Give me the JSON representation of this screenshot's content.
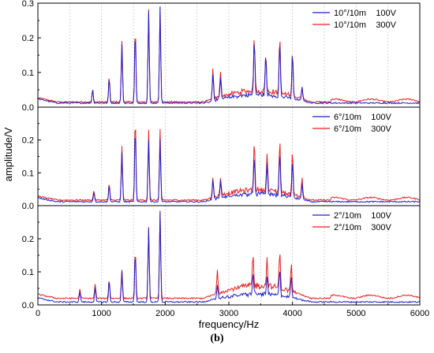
{
  "caption": "(b)",
  "chart_data": {
    "type": "line",
    "xlabel": "frequency/Hz",
    "ylabel": "amplitude/V",
    "xlim": [
      0,
      6000
    ],
    "x_ticks": [
      0,
      1000,
      2000,
      3000,
      4000,
      5000,
      6000
    ],
    "x_tick_labels": [
      "0",
      "1000",
      "2000",
      "3000",
      "4000",
      "5000",
      "6000"
    ],
    "x_minor_step": 500,
    "grid": "dotted vertical gridlines every 500 Hz",
    "legend_position": "top-right",
    "colors": {
      "100V": "#1f1fcf",
      "300V": "#ee1c1c"
    },
    "panels": [
      {
        "id": "top",
        "legend": [
          "10°/10m    100V",
          "10°/10m    300V"
        ],
        "ylim": [
          0,
          0.3
        ],
        "y_ticks": [
          0,
          0.1,
          0.2,
          0.3
        ],
        "y_tick_labels": [
          "0.0",
          "0.1",
          "0.2",
          "0.3"
        ],
        "baseline": {
          "100V": 0.01,
          "300V": 0.013
        },
        "high_band_scale": 1.35,
        "peaks": [
          {
            "x": 860,
            "y100": 0.05,
            "y300": 0.045
          },
          {
            "x": 1120,
            "y100": 0.08,
            "y300": 0.085
          },
          {
            "x": 1320,
            "y100": 0.18,
            "y300": 0.19
          },
          {
            "x": 1530,
            "y100": 0.22,
            "y300": 0.23
          },
          {
            "x": 1740,
            "y100": 0.275,
            "y300": 0.28
          },
          {
            "x": 1920,
            "y100": 0.29,
            "y300": 0.29
          },
          {
            "x": 2750,
            "y100": 0.09,
            "y300": 0.1
          },
          {
            "x": 2870,
            "y100": 0.07,
            "y300": 0.09
          },
          {
            "x": 3400,
            "y100": 0.17,
            "y300": 0.175
          },
          {
            "x": 3580,
            "y100": 0.13,
            "y300": 0.125
          },
          {
            "x": 3800,
            "y100": 0.165,
            "y300": 0.18
          },
          {
            "x": 4000,
            "y100": 0.14,
            "y300": 0.145
          },
          {
            "x": 4150,
            "y100": 0.05,
            "y300": 0.05
          }
        ]
      },
      {
        "id": "middle",
        "legend": [
          "6°/10m    100V",
          "6°/10m    300V"
        ],
        "ylim": [
          0,
          0.3
        ],
        "y_ticks": [
          0,
          0.1,
          0.2
        ],
        "y_tick_labels": [
          "0.0",
          "0.1",
          "0.2"
        ],
        "baseline": {
          "100V": 0.01,
          "300V": 0.015
        },
        "high_band_scale": 1.3,
        "peaks": [
          {
            "x": 880,
            "y100": 0.04,
            "y300": 0.045
          },
          {
            "x": 1120,
            "y100": 0.06,
            "y300": 0.065
          },
          {
            "x": 1320,
            "y100": 0.16,
            "y300": 0.18
          },
          {
            "x": 1530,
            "y100": 0.24,
            "y300": 0.27
          },
          {
            "x": 1740,
            "y100": 0.2,
            "y300": 0.23
          },
          {
            "x": 1920,
            "y100": 0.2,
            "y300": 0.23
          },
          {
            "x": 2750,
            "y100": 0.07,
            "y300": 0.075
          },
          {
            "x": 2870,
            "y100": 0.06,
            "y300": 0.07
          },
          {
            "x": 3400,
            "y100": 0.12,
            "y300": 0.165
          },
          {
            "x": 3600,
            "y100": 0.1,
            "y300": 0.13
          },
          {
            "x": 3800,
            "y100": 0.14,
            "y300": 0.175
          },
          {
            "x": 4000,
            "y100": 0.12,
            "y300": 0.15
          },
          {
            "x": 4150,
            "y100": 0.06,
            "y300": 0.075
          }
        ]
      },
      {
        "id": "bottom",
        "legend": [
          "2°/10m    100V",
          "2°/10m    300V"
        ],
        "ylim": [
          0,
          0.3
        ],
        "y_ticks": [
          0,
          0.1,
          0.2
        ],
        "y_tick_labels": [
          "0.0",
          "0.1",
          "0.2"
        ],
        "baseline": {
          "100V": 0.007,
          "300V": 0.018
        },
        "high_band_scale": 1.6,
        "peaks": [
          {
            "x": 660,
            "y100": 0.04,
            "y300": 0.045
          },
          {
            "x": 900,
            "y100": 0.05,
            "y300": 0.06
          },
          {
            "x": 1120,
            "y100": 0.07,
            "y300": 0.075
          },
          {
            "x": 1320,
            "y100": 0.1,
            "y300": 0.105
          },
          {
            "x": 1530,
            "y100": 0.16,
            "y300": 0.165
          },
          {
            "x": 1740,
            "y100": 0.23,
            "y300": 0.235
          },
          {
            "x": 1920,
            "y100": 0.28,
            "y300": 0.285
          },
          {
            "x": 2820,
            "y100": 0.05,
            "y300": 0.09
          },
          {
            "x": 3380,
            "y100": 0.07,
            "y300": 0.11
          },
          {
            "x": 3600,
            "y100": 0.06,
            "y300": 0.1
          },
          {
            "x": 3800,
            "y100": 0.09,
            "y300": 0.13
          },
          {
            "x": 3980,
            "y100": 0.07,
            "y300": 0.1
          }
        ]
      }
    ]
  }
}
